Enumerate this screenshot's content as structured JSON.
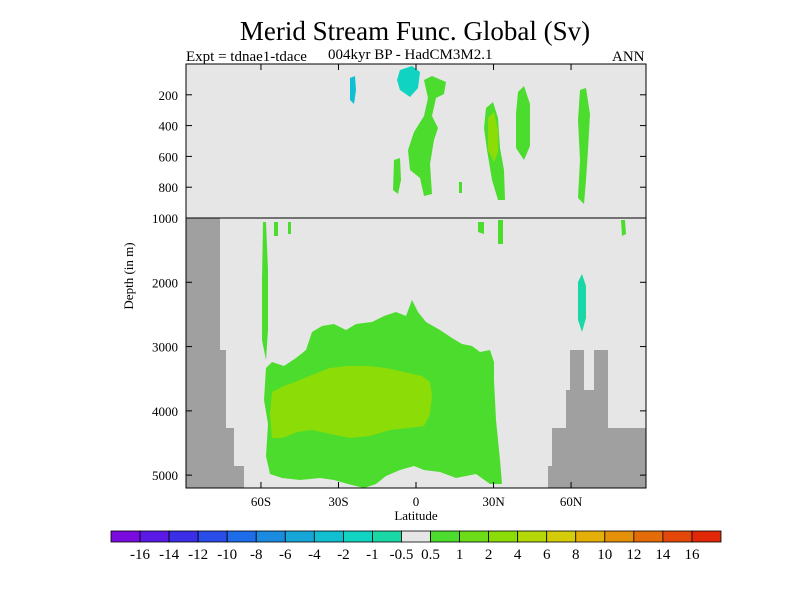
{
  "header": {
    "title": "Merid Stream Func. Global (Sv)",
    "left_label": "Expt = tdnae1-tdace",
    "center_label": "004kyr BP - HadCM3M2.1",
    "right_label": "ANN"
  },
  "chart_data": {
    "type": "contour",
    "title": "Merid Stream Func. Global (Sv)",
    "xlabel": "Latitude",
    "ylabel": "Depth (in m)",
    "x_ticks": [
      "60S",
      "30S",
      "0",
      "30N",
      "60N"
    ],
    "x_tick_values": [
      -60,
      -30,
      0,
      30,
      60
    ],
    "xlim": [
      -89,
      89
    ],
    "upper_panel": {
      "ylim": [
        0,
        1000
      ],
      "y_ticks": [
        "200",
        "400",
        "600",
        "800",
        "1000"
      ],
      "y_tick_values": [
        200,
        400,
        600,
        800,
        1000
      ]
    },
    "lower_panel": {
      "ylim": [
        1000,
        5200
      ],
      "y_ticks": [
        "2000",
        "3000",
        "4000",
        "5000"
      ],
      "y_tick_values": [
        2000,
        3000,
        4000,
        5000
      ]
    },
    "colorbar": {
      "labels": [
        "-16",
        "-14",
        "-12",
        "-10",
        "-8",
        "-6",
        "-4",
        "-2",
        "-1",
        "-0.5",
        "0.5",
        "1",
        "2",
        "4",
        "6",
        "8",
        "10",
        "12",
        "14",
        "16"
      ],
      "colors": [
        "#7a0ce0",
        "#5a19e6",
        "#3a2fe6",
        "#2a4ce8",
        "#1f6ce8",
        "#1b8be0",
        "#17a6d8",
        "#12bfd0",
        "#10d3c2",
        "#1ad8a6",
        "#e6e6e6",
        "#4cdc2e",
        "#6cdc18",
        "#8cdc08",
        "#b4d808",
        "#d4cc08",
        "#e4b008",
        "#e49008",
        "#e46c08",
        "#e44808",
        "#e02808"
      ]
    },
    "background_value": "-0.5 to 0.5",
    "land_color": "#a0a0a0",
    "background_color": "#e6e6e6"
  }
}
